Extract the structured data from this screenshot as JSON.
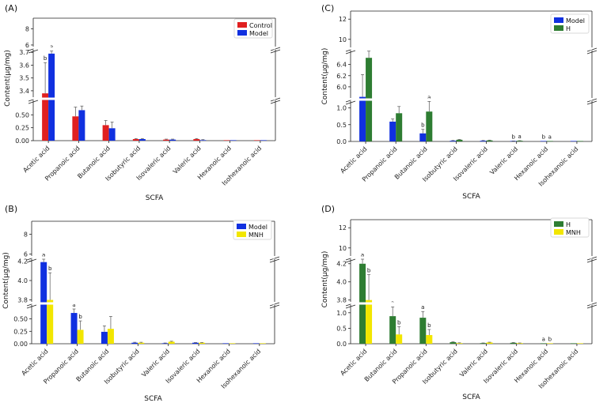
{
  "chart_data": [
    {
      "type": "bar",
      "title": "(A)",
      "xlabel": "SCFA",
      "ylabel": "Content(μg/mg)",
      "categories": [
        "Acetic acid",
        "Propanoic acid",
        "Butanoic acid",
        "Isobutyric acid",
        "Isovaleric acid",
        "Valeric acid",
        "Hexanoic acid",
        "Isohexanoic acid"
      ],
      "series": [
        {
          "name": "Control",
          "color": "#e02020",
          "values": [
            3.38,
            0.47,
            0.3,
            0.03,
            0.02,
            0.03,
            0.005,
            0.003
          ],
          "errors": [
            0.24,
            0.18,
            0.09,
            0.01,
            0.01,
            0.01,
            0.002,
            0.002
          ],
          "labels": [
            "b",
            "",
            "",
            "",
            "",
            "",
            "",
            ""
          ]
        },
        {
          "name": "Model",
          "color": "#1030e0",
          "values": [
            3.69,
            0.59,
            0.24,
            0.03,
            0.02,
            0.01,
            0.005,
            0.003
          ],
          "errors": [
            0.02,
            0.08,
            0.12,
            0.01,
            0.01,
            0.01,
            0.002,
            0.002
          ],
          "labels": [
            "a",
            "",
            "",
            "",
            "",
            "",
            "",
            ""
          ]
        }
      ],
      "axis_segments": [
        {
          "range": [
            0,
            0.78
          ],
          "ticks": [
            "0.00",
            "0.25",
            "0.50"
          ]
        },
        {
          "range": [
            3.35,
            3.72
          ],
          "ticks": [
            "3.4",
            "3.5",
            "3.6",
            "3.7"
          ]
        },
        {
          "range": [
            5.8,
            9.3
          ],
          "ticks": [
            "6",
            "8"
          ]
        }
      ],
      "legend_position": "top-right"
    },
    {
      "type": "bar",
      "title": "(C)",
      "xlabel": "SCFA",
      "ylabel": "Content(μg/mg)",
      "categories": [
        "Acetic acid",
        "Propanoic acid",
        "Butanoic acid",
        "Isobutyric acid",
        "Isovaleric acid",
        "Valeric acid",
        "Hexanoic acid",
        "Isohexanoic acid"
      ],
      "series": [
        {
          "name": "Model",
          "color": "#1030e0",
          "values": [
            5.82,
            0.59,
            0.24,
            0.02,
            0.02,
            0.01,
            0.005,
            0.003
          ],
          "errors": [
            0.4,
            0.08,
            0.12,
            0.01,
            0.01,
            0.005,
            0.002,
            0.002
          ],
          "labels": [
            "",
            "",
            "b",
            "",
            "",
            "b",
            "b",
            ""
          ]
        },
        {
          "name": "H",
          "color": "#2e7d32",
          "values": [
            6.52,
            0.84,
            0.89,
            0.05,
            0.03,
            0.02,
            0.01,
            0.004
          ],
          "errors": [
            0.12,
            0.2,
            0.3,
            0.01,
            0.01,
            0.005,
            0.002,
            0.002
          ],
          "labels": [
            "",
            "",
            "a",
            "",
            "",
            "a",
            "a",
            ""
          ]
        }
      ],
      "axis_segments": [
        {
          "range": [
            0,
            1.2
          ],
          "ticks": [
            "0.0",
            "0.5",
            "1.0"
          ]
        },
        {
          "range": [
            5.8,
            6.65
          ],
          "ticks": [
            "6.0",
            "6.2",
            "6.4"
          ]
        },
        {
          "range": [
            9.2,
            12.8
          ],
          "ticks": [
            "10",
            "12"
          ]
        }
      ],
      "legend_position": "top-right"
    },
    {
      "type": "bar",
      "title": "(B)",
      "xlabel": "SCFA",
      "ylabel": "Content(μg/mg)",
      "categories": [
        "Acetic acid",
        "Propanoic acid",
        "Butanoic acid",
        "Isobutyric acid",
        "Valeric acid",
        "Isovaleric acid",
        "Hexanoic acid",
        "Isohexanoic acid"
      ],
      "series": [
        {
          "name": "Model",
          "color": "#1030e0",
          "values": [
            4.19,
            0.62,
            0.24,
            0.02,
            0.01,
            0.02,
            0.005,
            0.003
          ],
          "errors": [
            0.03,
            0.08,
            0.12,
            0.01,
            0.005,
            0.005,
            0.002,
            0.002
          ],
          "labels": [
            "a",
            "a",
            "",
            "",
            "",
            "",
            "",
            ""
          ]
        },
        {
          "name": "MNH",
          "color": "#f2e600",
          "values": [
            3.8,
            0.28,
            0.3,
            0.02,
            0.04,
            0.02,
            0.005,
            0.004
          ],
          "errors": [
            0.28,
            0.18,
            0.25,
            0.01,
            0.01,
            0.005,
            0.002,
            0.002
          ],
          "labels": [
            "b",
            "b",
            "",
            "",
            "",
            "",
            "",
            ""
          ]
        }
      ],
      "axis_segments": [
        {
          "range": [
            0,
            0.78
          ],
          "ticks": [
            "0.00",
            "0.25",
            "0.50"
          ]
        },
        {
          "range": [
            3.78,
            4.22
          ],
          "ticks": [
            "3.8",
            "4.0",
            "4.2"
          ]
        },
        {
          "range": [
            5.8,
            9.3
          ],
          "ticks": [
            "6",
            "8"
          ]
        }
      ],
      "legend_position": "top-right"
    },
    {
      "type": "bar",
      "title": "(D)",
      "xlabel": "SCFA",
      "ylabel": "Content(μg/mg)",
      "categories": [
        "Acetic acid",
        "Butanoic acid",
        "Propanoic acid",
        "Isobutyric acid",
        "Valeric acid",
        "Isovaleric acid",
        "Hexanoic acid",
        "Isohexanoic acid"
      ],
      "series": [
        {
          "name": "H",
          "color": "#2e7d32",
          "values": [
            4.2,
            0.89,
            0.84,
            0.05,
            0.02,
            0.03,
            0.005,
            0.004
          ],
          "errors": [
            0.05,
            0.3,
            0.2,
            0.01,
            0.005,
            0.01,
            0.002,
            0.002
          ],
          "labels": [
            "a",
            "a",
            "a",
            "",
            "",
            "",
            "a",
            ""
          ]
        },
        {
          "name": "MNH",
          "color": "#f2e600",
          "values": [
            3.8,
            0.3,
            0.28,
            0.02,
            0.04,
            0.02,
            0.005,
            0.004
          ],
          "errors": [
            0.28,
            0.25,
            0.18,
            0.01,
            0.01,
            0.005,
            0.002,
            0.002
          ],
          "labels": [
            "b",
            "b",
            "b",
            "",
            "",
            "",
            "b",
            ""
          ]
        }
      ],
      "axis_segments": [
        {
          "range": [
            0,
            1.25
          ],
          "ticks": [
            "0.0",
            "0.5",
            "1.0"
          ]
        },
        {
          "range": [
            3.78,
            4.25
          ],
          "ticks": [
            "3.8",
            "4.0",
            "4.2"
          ]
        },
        {
          "range": [
            9.2,
            12.8
          ],
          "ticks": [
            "10",
            "12"
          ]
        }
      ],
      "legend_position": "top-right"
    }
  ]
}
